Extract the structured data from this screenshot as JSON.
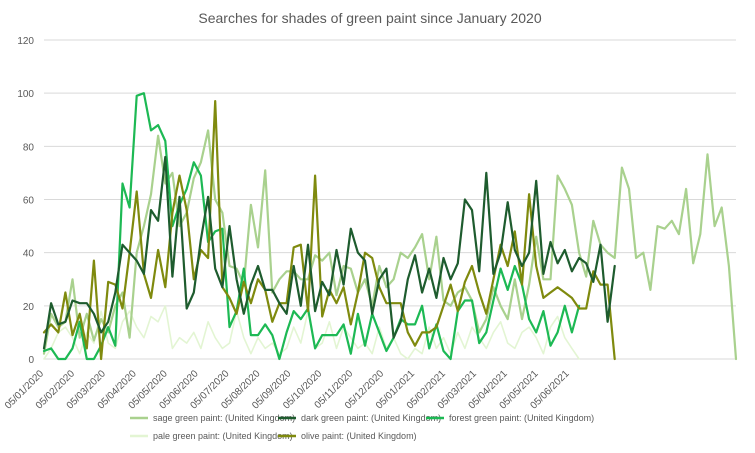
{
  "chart_data": {
    "type": "line",
    "title": "Searches for shades of green paint since January 2020",
    "xlabel": "",
    "ylabel": "",
    "ylim": [
      0,
      120
    ],
    "yticks": [
      0,
      20,
      40,
      60,
      80,
      100,
      120
    ],
    "grid": true,
    "legend_position": "bottom",
    "x_tick_labels": [
      "05/01/2020",
      "05/02/2020",
      "05/03/2020",
      "05/04/2020",
      "05/05/2020",
      "05/06/2020",
      "05/07/2020",
      "05/08/2020",
      "05/09/2020",
      "05/10/2020",
      "05/11/2020",
      "05/12/2020",
      "05/01/2021",
      "05/02/2021",
      "05/03/2021",
      "05/04/2021",
      "05/05/2021",
      "05/06/2021"
    ],
    "x_start": "05/01/2020",
    "x_step": "weekly",
    "series": [
      {
        "name": "sage green paint: (United Kingdom)",
        "color": "#a9d18e",
        "width": 2.2,
        "values": [
          2,
          17,
          12,
          14,
          30,
          8,
          17,
          7,
          15,
          10,
          20,
          25,
          8,
          40,
          50,
          62,
          84,
          66,
          70,
          50,
          55,
          68,
          74,
          86,
          60,
          55,
          35,
          34,
          28,
          58,
          42,
          71,
          25,
          30,
          33,
          33,
          30,
          30,
          39,
          37,
          40,
          24,
          35,
          34,
          25,
          30,
          20,
          35,
          27,
          30,
          40,
          38,
          42,
          47,
          30,
          46,
          22,
          20,
          25,
          27,
          22,
          10,
          15,
          27,
          20,
          15,
          30,
          15,
          28,
          46,
          30,
          30,
          69,
          64,
          58,
          40,
          31,
          52,
          43,
          40,
          38,
          72,
          64,
          38,
          40,
          26,
          50,
          49,
          52,
          47,
          64,
          36,
          47,
          77,
          50,
          57,
          35,
          0
        ]
      },
      {
        "name": "dark green paint: (United Kingdom)",
        "color": "#1e5c2e",
        "width": 2.2,
        "values": [
          4,
          21,
          13,
          14,
          22,
          21,
          21,
          17,
          10,
          14,
          25,
          43,
          40,
          37,
          32,
          56,
          52,
          76,
          31,
          61,
          19,
          25,
          45,
          61,
          34,
          27,
          50,
          30,
          17,
          28,
          35,
          26,
          26,
          21,
          17,
          35,
          20,
          43,
          18,
          29,
          24,
          41,
          28,
          49,
          40,
          37,
          17,
          30,
          34,
          8,
          14,
          30,
          39,
          25,
          34,
          23,
          38,
          30,
          36,
          60,
          56,
          33,
          70,
          32,
          40,
          59,
          41,
          35,
          40,
          67,
          32,
          44,
          36,
          41,
          33,
          38,
          36,
          29,
          43,
          14,
          35
        ]
      },
      {
        "name": "forest green paint: (United Kingdom)",
        "color": "#1db954",
        "width": 2.2,
        "values": [
          3,
          4,
          0,
          0,
          4,
          14,
          0,
          0,
          5,
          12,
          5,
          66,
          57,
          99,
          100,
          86,
          88,
          82,
          50,
          58,
          64,
          74,
          69,
          44,
          48,
          49,
          12,
          18,
          34,
          9,
          9,
          13,
          9,
          0,
          10,
          18,
          15,
          19,
          4,
          9,
          9,
          9,
          13,
          2,
          17,
          5,
          17,
          10,
          3,
          8,
          15,
          13,
          13,
          20,
          4,
          13,
          3,
          0,
          18,
          22,
          22,
          6,
          10,
          22,
          34,
          26,
          35,
          28,
          15,
          10,
          18,
          5,
          10,
          20,
          10,
          20
        ]
      },
      {
        "name": "pale green paint: (United Kingdom)",
        "color": "#e3f5d3",
        "width": 1.6,
        "values": [
          0,
          4,
          10,
          12,
          8,
          2,
          10,
          6,
          18,
          6,
          4,
          14,
          18,
          12,
          8,
          16,
          14,
          20,
          4,
          8,
          6,
          10,
          4,
          14,
          8,
          4,
          6,
          18,
          8,
          2,
          8,
          4,
          6,
          2,
          4,
          12,
          6,
          18,
          4,
          6,
          14,
          4,
          12,
          8,
          4,
          6,
          2,
          12,
          4,
          8,
          2,
          0,
          4,
          2,
          12,
          4,
          8,
          2,
          10,
          4,
          12,
          8,
          4,
          10,
          14,
          6,
          4,
          10,
          12,
          8,
          2,
          12,
          16,
          8,
          4,
          0
        ]
      },
      {
        "name": "olive paint: (United Kingdom)",
        "color": "#7f8a0e",
        "width": 2.2,
        "values": [
          10,
          13,
          10,
          25,
          9,
          17,
          4,
          37,
          0,
          29,
          28,
          19,
          40,
          63,
          32,
          23,
          41,
          27,
          55,
          69,
          56,
          30,
          41,
          38,
          97,
          27,
          23,
          17,
          29,
          21,
          30,
          26,
          14,
          21,
          21,
          42,
          43,
          18,
          69,
          16,
          26,
          21,
          27,
          13,
          25,
          40,
          38,
          27,
          21,
          21,
          21,
          10,
          5,
          10,
          10,
          12,
          20,
          28,
          18,
          29,
          35,
          25,
          17,
          30,
          43,
          35,
          48,
          28,
          62,
          35,
          23,
          25,
          27,
          25,
          23,
          19,
          19,
          33,
          28,
          28,
          0
        ]
      }
    ]
  }
}
